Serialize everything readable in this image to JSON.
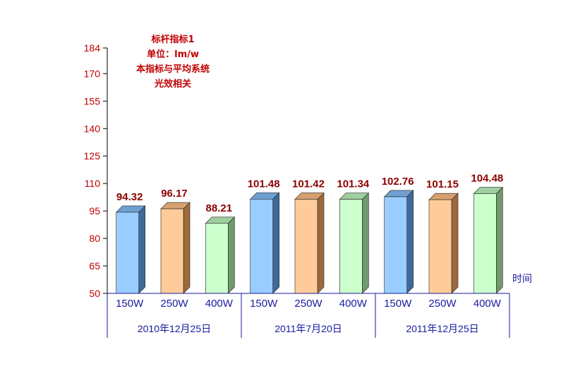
{
  "note": {
    "lines": [
      "标杆指标1",
      "单位：lm/w",
      "本指标与平均系统",
      "光效相关"
    ]
  },
  "chart_data": {
    "type": "bar",
    "y_ticks": [
      50,
      65,
      80,
      95,
      110,
      125,
      140,
      155,
      170,
      184
    ],
    "ylim": [
      50,
      184
    ],
    "xlabel": "时间",
    "groups": [
      "2010年12月25日",
      "2011年7月20日",
      "2011年12月25日"
    ],
    "categories": [
      "150W",
      "250W",
      "400W",
      "150W",
      "250W",
      "400W",
      "150W",
      "250W",
      "400W"
    ],
    "values": [
      94.32,
      96.17,
      88.21,
      101.48,
      101.42,
      101.34,
      102.76,
      101.15,
      104.48
    ],
    "labels": [
      "94.32",
      "96.17",
      "88.21",
      "101.48",
      "101.42",
      "101.34",
      "102.76",
      "101.15",
      "104.48"
    ],
    "colors": {
      "150W": {
        "front": "#99ccff",
        "side": "#3d6a99",
        "top": "#6f9fd0"
      },
      "250W": {
        "front": "#ffcc99",
        "side": "#9e6a3c",
        "top": "#d7a070"
      },
      "400W": {
        "front": "#ccffcc",
        "side": "#6e9a6e",
        "top": "#9fce9f"
      }
    }
  }
}
